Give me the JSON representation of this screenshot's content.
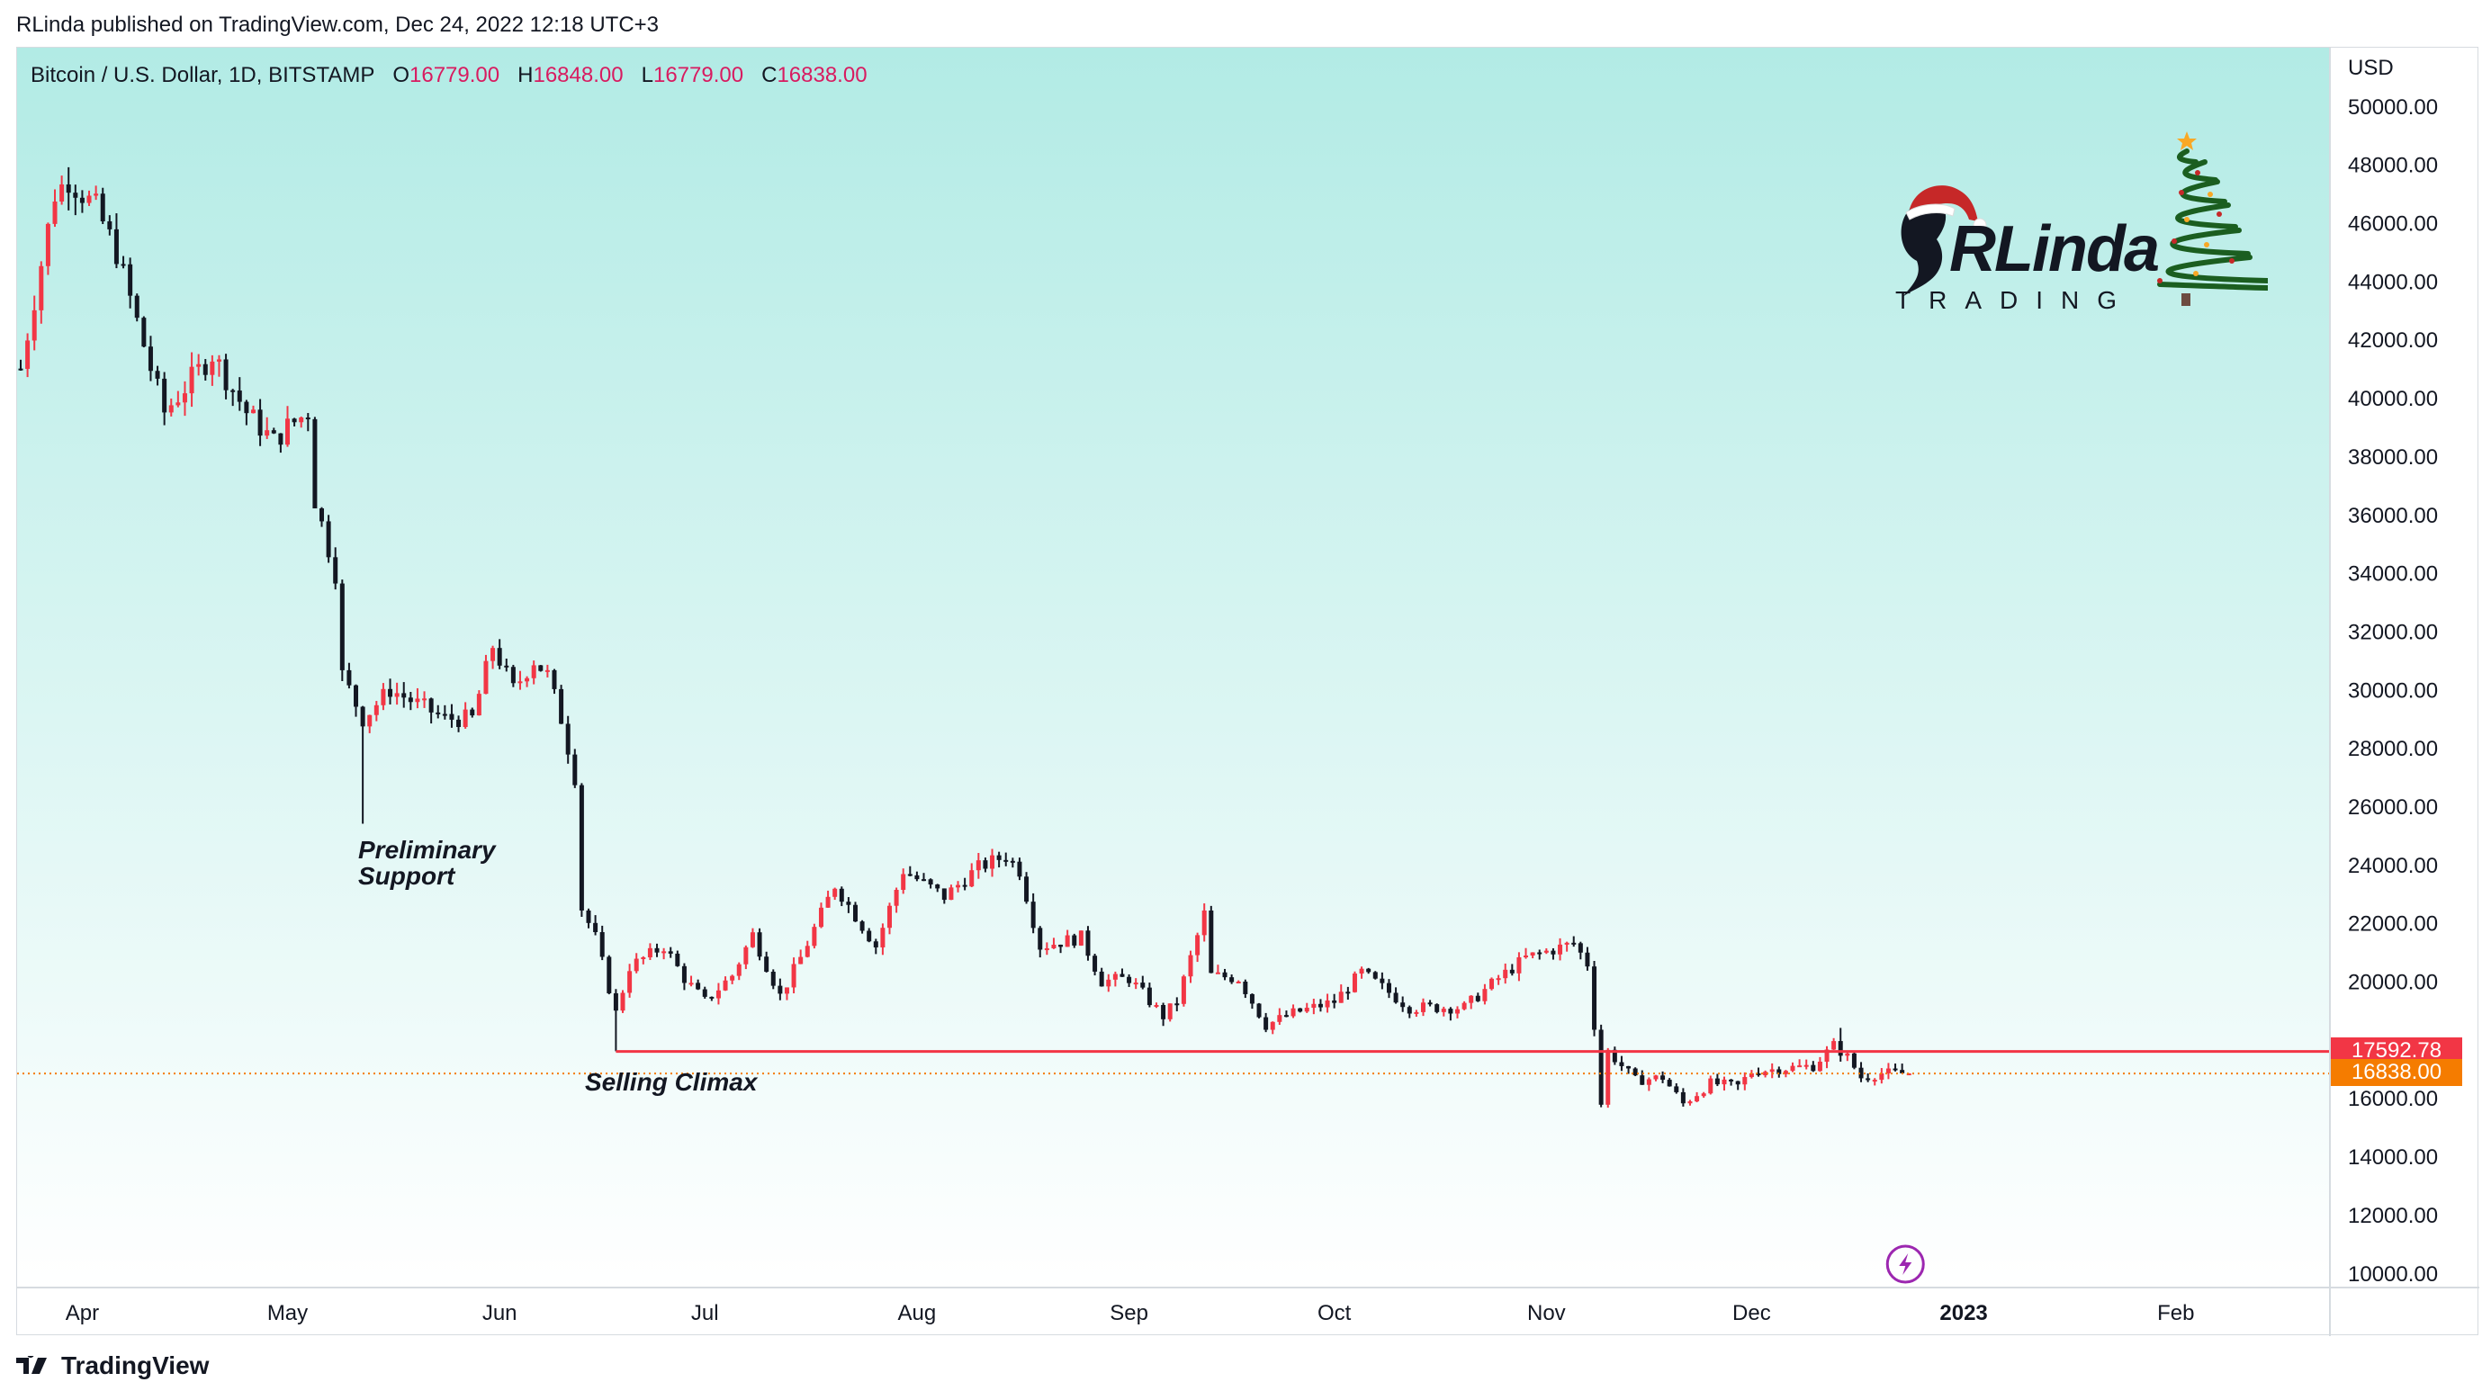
{
  "header": {
    "publisher_line": "RLinda published on TradingView.com, Dec 24, 2022 12:18 UTC+3"
  },
  "symbol_info": {
    "name": "Bitcoin / U.S. Dollar, 1D, BITSTAMP",
    "open_label": "O",
    "open": "16779.00",
    "high_label": "H",
    "high": "16848.00",
    "low_label": "L",
    "low": "16779.00",
    "close_label": "C",
    "close": "16838.00"
  },
  "footer": {
    "brand": "TradingView"
  },
  "watermark": {
    "name": "RLinda",
    "sub": "TRADING"
  },
  "annotations": {
    "preliminary_support": [
      "Preliminary",
      "Support"
    ],
    "selling_climax": "Selling Climax"
  },
  "colors": {
    "up": "#f23645",
    "down": "#131722",
    "bg_top": "#b2ebe5",
    "bg_bottom": "#ffffff",
    "level_line": "#f23645",
    "close_badge": "#f57c00",
    "level_badge": "#f23645"
  },
  "chart_data": {
    "type": "candlestick",
    "title": "Bitcoin / U.S. Dollar, 1D, BITSTAMP",
    "currency_label": "USD",
    "ylim": [
      9500,
      52000
    ],
    "y_ticks": [
      10000,
      12000,
      14000,
      16000,
      18000,
      20000,
      22000,
      24000,
      26000,
      28000,
      30000,
      32000,
      34000,
      36000,
      38000,
      40000,
      42000,
      44000,
      46000,
      48000,
      50000
    ],
    "y_tick_labels": [
      "10000.00",
      "12000.00",
      "14000.00",
      "16000.00",
      "",
      "20000.00",
      "22000.00",
      "24000.00",
      "26000.00",
      "28000.00",
      "30000.00",
      "32000.00",
      "34000.00",
      "36000.00",
      "38000.00",
      "40000.00",
      "42000.00",
      "44000.00",
      "46000.00",
      "48000.00",
      "50000.00"
    ],
    "x_range": [
      "2022-03-23",
      "2023-02-23"
    ],
    "x_ticks": [
      {
        "date": "2022-04-01",
        "label": "Apr"
      },
      {
        "date": "2022-05-01",
        "label": "May"
      },
      {
        "date": "2022-06-01",
        "label": "Jun"
      },
      {
        "date": "2022-07-01",
        "label": "Jul"
      },
      {
        "date": "2022-08-01",
        "label": "Aug"
      },
      {
        "date": "2022-09-01",
        "label": "Sep"
      },
      {
        "date": "2022-10-01",
        "label": "Oct"
      },
      {
        "date": "2022-11-01",
        "label": "Nov"
      },
      {
        "date": "2022-12-01",
        "label": "Dec"
      },
      {
        "date": "2023-01-01",
        "label": "2023",
        "bold": true
      },
      {
        "date": "2023-02-01",
        "label": "Feb"
      }
    ],
    "anchors": [
      [
        "2022-03-23",
        41000
      ],
      [
        "2022-03-28",
        47000
      ],
      [
        "2022-03-30",
        47500
      ],
      [
        "2022-04-03",
        46500
      ],
      [
        "2022-04-06",
        45000
      ],
      [
        "2022-04-11",
        41000
      ],
      [
        "2022-04-13",
        39500
      ],
      [
        "2022-04-20",
        41500
      ],
      [
        "2022-04-25",
        39500
      ],
      [
        "2022-04-29",
        38500
      ],
      [
        "2022-05-01",
        39000
      ],
      [
        "2022-05-04",
        39500
      ],
      [
        "2022-05-05",
        36500
      ],
      [
        "2022-05-08",
        34000
      ],
      [
        "2022-05-09",
        30500
      ],
      [
        "2022-05-12",
        29000
      ],
      [
        "2022-05-16",
        30000
      ],
      [
        "2022-05-20",
        29500
      ],
      [
        "2022-05-24",
        29000
      ],
      [
        "2022-05-28",
        29000
      ],
      [
        "2022-05-31",
        31500
      ],
      [
        "2022-06-03",
        30000
      ],
      [
        "2022-06-06",
        31000
      ],
      [
        "2022-06-08",
        30500
      ],
      [
        "2022-06-10",
        29000
      ],
      [
        "2022-06-12",
        27000
      ],
      [
        "2022-06-13",
        22500
      ],
      [
        "2022-06-15",
        21500
      ],
      [
        "2022-06-18",
        18900
      ],
      [
        "2022-06-20",
        20500
      ],
      [
        "2022-06-25",
        21200
      ],
      [
        "2022-06-28",
        20100
      ],
      [
        "2022-07-01",
        19300
      ],
      [
        "2022-07-05",
        20200
      ],
      [
        "2022-07-08",
        21600
      ],
      [
        "2022-07-12",
        19500
      ],
      [
        "2022-07-15",
        20800
      ],
      [
        "2022-07-20",
        23300
      ],
      [
        "2022-07-26",
        21200
      ],
      [
        "2022-07-30",
        23800
      ],
      [
        "2022-08-05",
        22900
      ],
      [
        "2022-08-10",
        23900
      ],
      [
        "2022-08-14",
        24300
      ],
      [
        "2022-08-16",
        23800
      ],
      [
        "2022-08-19",
        21200
      ],
      [
        "2022-08-25",
        21500
      ],
      [
        "2022-08-28",
        20000
      ],
      [
        "2022-09-01",
        20100
      ],
      [
        "2022-09-06",
        18800
      ],
      [
        "2022-09-08",
        19300
      ],
      [
        "2022-09-12",
        22300
      ],
      [
        "2022-09-13",
        20200
      ],
      [
        "2022-09-17",
        20100
      ],
      [
        "2022-09-21",
        18500
      ],
      [
        "2022-09-25",
        18900
      ],
      [
        "2022-10-01",
        19300
      ],
      [
        "2022-10-05",
        20300
      ],
      [
        "2022-10-12",
        19100
      ],
      [
        "2022-10-20",
        19100
      ],
      [
        "2022-10-25",
        20100
      ],
      [
        "2022-10-29",
        20800
      ],
      [
        "2022-11-05",
        21300
      ],
      [
        "2022-11-07",
        20600
      ],
      [
        "2022-11-08",
        18500
      ],
      [
        "2022-11-09",
        15800
      ],
      [
        "2022-11-10",
        17600
      ],
      [
        "2022-11-14",
        16600
      ],
      [
        "2022-11-18",
        16700
      ],
      [
        "2022-11-21",
        15800
      ],
      [
        "2022-11-25",
        16500
      ],
      [
        "2022-11-29",
        16400
      ],
      [
        "2022-12-01",
        16900
      ],
      [
        "2022-12-05",
        17000
      ],
      [
        "2022-12-10",
        17100
      ],
      [
        "2022-12-13",
        17800
      ],
      [
        "2022-12-15",
        17400
      ],
      [
        "2022-12-17",
        16700
      ],
      [
        "2022-12-20",
        16850
      ],
      [
        "2022-12-24",
        16838
      ]
    ],
    "last_candle": {
      "date": "2022-12-24",
      "open": 16779,
      "high": 16848,
      "low": 16779,
      "close": 16838
    },
    "spikes": [
      {
        "date": "2022-05-12",
        "low": 25400
      },
      {
        "date": "2022-06-18",
        "low": 17600
      },
      {
        "date": "2022-12-14",
        "high": 18400
      }
    ],
    "levels": [
      {
        "name": "selling-climax-level",
        "value": 17592.78,
        "label": "17592.78",
        "from": "2022-06-18"
      },
      {
        "name": "last-close",
        "value": 16838,
        "label": "16838.00"
      }
    ]
  }
}
